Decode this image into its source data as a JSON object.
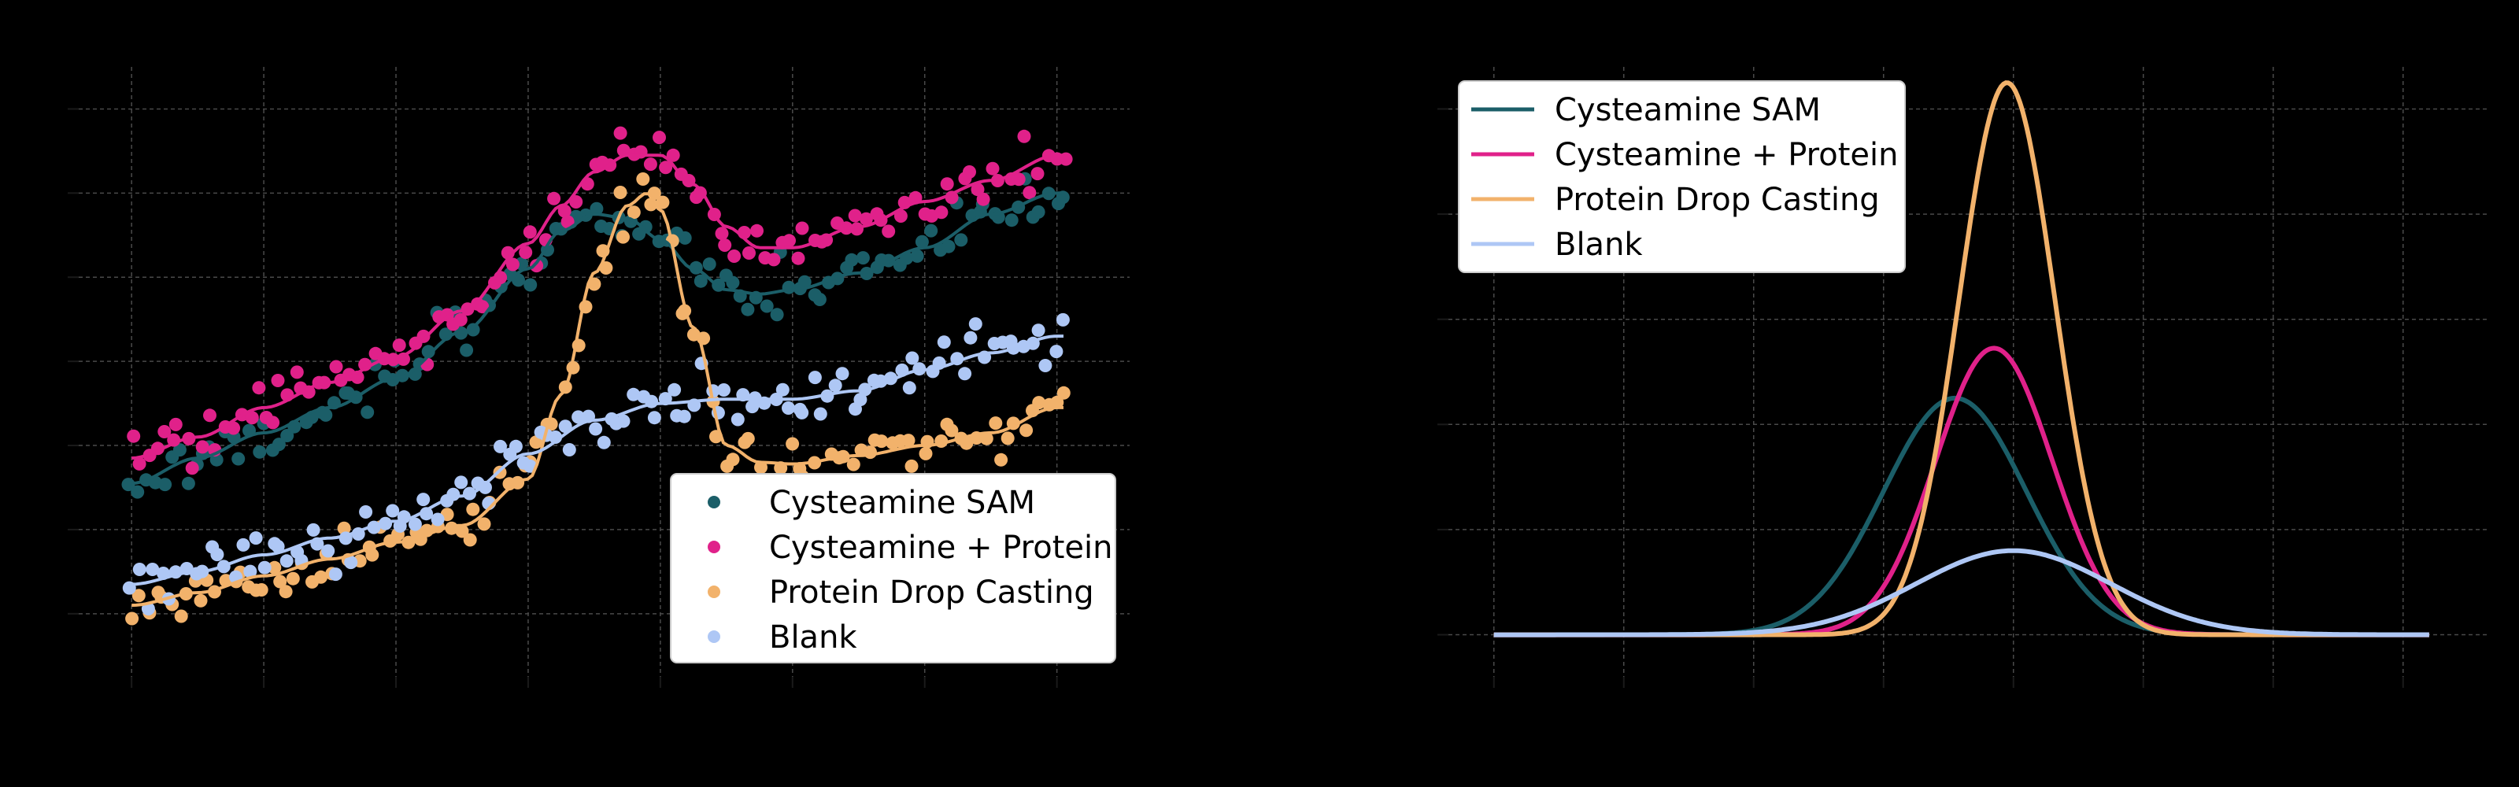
{
  "chart_data": [
    {
      "type": "scatter",
      "title": "",
      "xlabel": "",
      "ylabel": "",
      "xlim": [
        -0.4,
        7.55
      ],
      "ylim": [
        -0.75,
        6.5
      ],
      "xticks": [
        0,
        1,
        2,
        3,
        4,
        5,
        6,
        7
      ],
      "yticks": [
        0,
        1,
        2,
        3,
        4,
        5,
        6
      ],
      "tick_labels_visible": false,
      "grid": true,
      "legend": {
        "position": "lower-right",
        "marker": "dot"
      },
      "series": [
        {
          "name": "Cysteamine SAM",
          "color": "#1b5e68",
          "trend": [
            [
              0,
              1.55
            ],
            [
              0.5,
              1.85
            ],
            [
              1,
              2.15
            ],
            [
              1.5,
              2.45
            ],
            [
              2,
              2.8
            ],
            [
              2.5,
              3.35
            ],
            [
              3,
              4.1
            ],
            [
              3.25,
              4.55
            ],
            [
              3.5,
              4.75
            ],
            [
              3.75,
              4.7
            ],
            [
              4,
              4.45
            ],
            [
              4.25,
              4.1
            ],
            [
              4.5,
              3.85
            ],
            [
              4.75,
              3.8
            ],
            [
              5,
              3.85
            ],
            [
              5.5,
              4.05
            ],
            [
              6,
              4.35
            ],
            [
              6.5,
              4.75
            ],
            [
              7,
              5.0
            ]
          ]
        },
        {
          "name": "Cysteamine + Protein",
          "color": "#e0218a",
          "trend": [
            [
              0,
              1.85
            ],
            [
              0.5,
              2.1
            ],
            [
              1,
              2.45
            ],
            [
              1.5,
              2.75
            ],
            [
              2,
              3.05
            ],
            [
              2.5,
              3.6
            ],
            [
              3,
              4.4
            ],
            [
              3.25,
              4.85
            ],
            [
              3.5,
              5.25
            ],
            [
              3.75,
              5.45
            ],
            [
              4,
              5.45
            ],
            [
              4.25,
              5.1
            ],
            [
              4.5,
              4.6
            ],
            [
              4.75,
              4.35
            ],
            [
              5,
              4.35
            ],
            [
              5.5,
              4.6
            ],
            [
              6,
              4.9
            ],
            [
              6.5,
              5.15
            ],
            [
              7,
              5.45
            ]
          ]
        },
        {
          "name": "Protein Drop Casting",
          "color": "#f2b26b",
          "trend": [
            [
              0,
              0.1
            ],
            [
              0.5,
              0.25
            ],
            [
              1,
              0.45
            ],
            [
              1.5,
              0.65
            ],
            [
              2,
              0.85
            ],
            [
              2.5,
              1.05
            ],
            [
              3,
              1.6
            ],
            [
              3.25,
              2.6
            ],
            [
              3.5,
              4.05
            ],
            [
              3.75,
              4.85
            ],
            [
              3.9,
              5.0
            ],
            [
              4,
              4.8
            ],
            [
              4.25,
              3.4
            ],
            [
              4.5,
              2.0
            ],
            [
              4.75,
              1.8
            ],
            [
              5,
              1.78
            ],
            [
              5.5,
              1.88
            ],
            [
              6,
              2.0
            ],
            [
              6.5,
              2.15
            ],
            [
              7,
              2.45
            ]
          ]
        },
        {
          "name": "Blank",
          "color": "#aec7f5",
          "trend": [
            [
              0,
              0.35
            ],
            [
              0.5,
              0.5
            ],
            [
              1,
              0.7
            ],
            [
              1.5,
              0.9
            ],
            [
              2,
              1.1
            ],
            [
              2.5,
              1.4
            ],
            [
              3,
              1.9
            ],
            [
              3.5,
              2.3
            ],
            [
              4,
              2.5
            ],
            [
              4.5,
              2.55
            ],
            [
              5,
              2.55
            ],
            [
              5.5,
              2.65
            ],
            [
              6,
              2.9
            ],
            [
              6.5,
              3.1
            ],
            [
              7,
              3.3
            ]
          ]
        }
      ]
    },
    {
      "type": "line",
      "title": "",
      "xlabel": "",
      "ylabel": "",
      "xlim": [
        -0.35,
        7.65
      ],
      "ylim": [
        -0.08,
        1.08
      ],
      "xticks": [
        0,
        1,
        2,
        3,
        4,
        5,
        6,
        7
      ],
      "yticks": [
        0,
        0.2,
        0.4,
        0.6,
        0.8,
        1.0
      ],
      "tick_labels_visible": false,
      "grid": true,
      "legend": {
        "position": "upper-left",
        "marker": "line"
      },
      "series": [
        {
          "name": "Cysteamine SAM",
          "color": "#1b5e68",
          "peak_x": 3.55,
          "peak_y": 0.45,
          "width": 0.55
        },
        {
          "name": "Cysteamine + Protein",
          "color": "#e0218a",
          "peak_x": 3.85,
          "peak_y": 0.545,
          "width": 0.45
        },
        {
          "name": "Protein Drop Casting",
          "color": "#f2b26b",
          "peak_x": 3.95,
          "peak_y": 1.05,
          "width": 0.37
        },
        {
          "name": "Blank",
          "color": "#aec7f5",
          "peak_x": 4.0,
          "peak_y": 0.16,
          "width": 0.75
        }
      ],
      "x_range": [
        0,
        7.2
      ]
    }
  ]
}
